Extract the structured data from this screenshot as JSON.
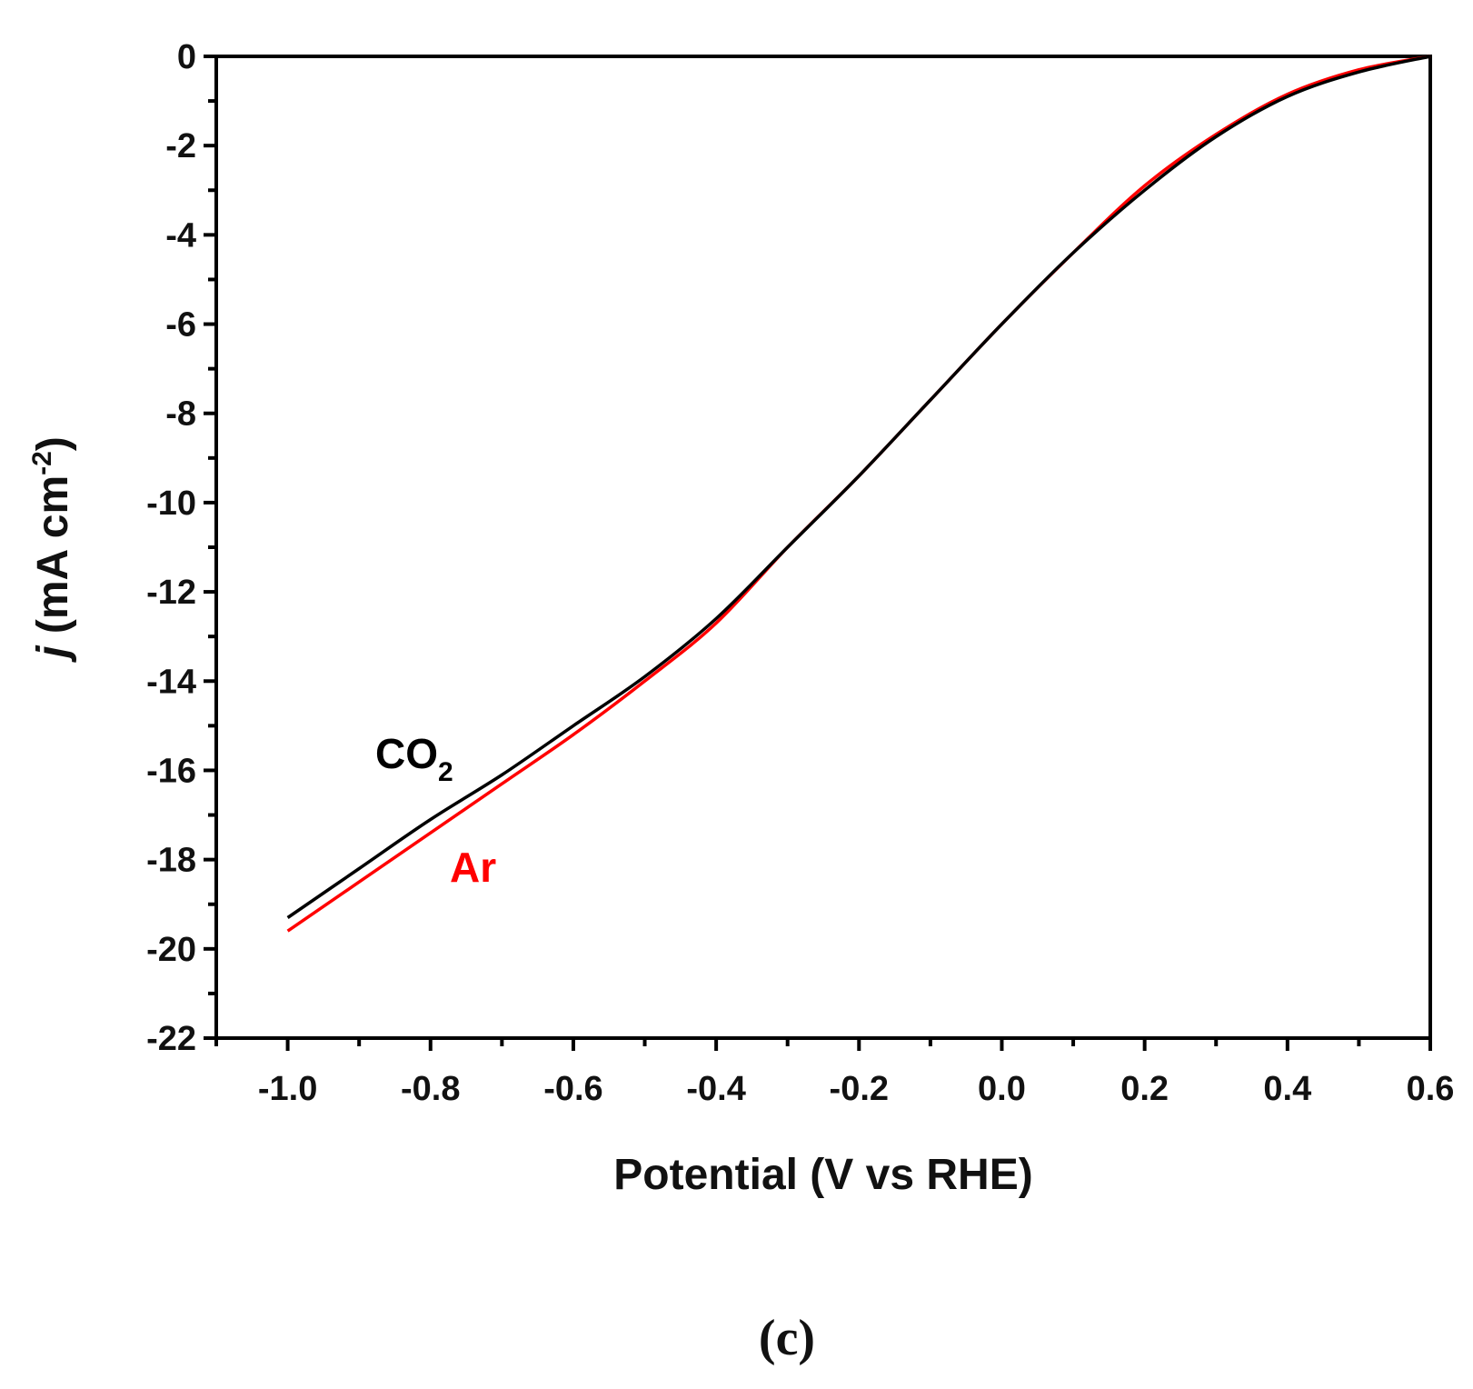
{
  "chart_data": {
    "type": "line",
    "xlabel": "Potential (V vs RHE)",
    "ylabel_italic": "j",
    "ylabel_unit": " (mA cm",
    "ylabel_sup": "-2",
    "ylabel_close": ")",
    "xlim": [
      -1.1,
      0.6
    ],
    "ylim": [
      -22,
      0
    ],
    "xticks": [
      -1.0,
      -0.8,
      -0.6,
      -0.4,
      -0.2,
      0.0,
      0.2,
      0.4,
      0.6
    ],
    "xtick_labels": [
      "-1.0",
      "-0.8",
      "-0.6",
      "-0.4",
      "-0.2",
      "0.0",
      "0.2",
      "0.4",
      "0.6"
    ],
    "yticks": [
      0,
      -2,
      -4,
      -6,
      -8,
      -10,
      -12,
      -14,
      -16,
      -18,
      -20,
      -22
    ],
    "ytick_labels": [
      "0",
      "-2",
      "-4",
      "-6",
      "-8",
      "-10",
      "-12",
      "-14",
      "-16",
      "-18",
      "-20",
      "-22"
    ],
    "grid": false,
    "series": [
      {
        "name": "CO2",
        "label_main": "CO",
        "label_sub": "2",
        "color": "#000000",
        "x": [
          -1.0,
          -0.9,
          -0.8,
          -0.7,
          -0.6,
          -0.5,
          -0.4,
          -0.3,
          -0.2,
          -0.1,
          0.0,
          0.1,
          0.2,
          0.3,
          0.4,
          0.5,
          0.6
        ],
        "y": [
          -19.3,
          -18.2,
          -17.1,
          -16.1,
          -15.0,
          -13.9,
          -12.6,
          -11.0,
          -9.4,
          -7.7,
          -6.0,
          -4.4,
          -3.0,
          -1.8,
          -0.9,
          -0.35,
          0.0
        ]
      },
      {
        "name": "Ar",
        "label_main": "Ar",
        "label_sub": "",
        "color": "#ff0000",
        "x": [
          -1.0,
          -0.9,
          -0.8,
          -0.7,
          -0.6,
          -0.5,
          -0.4,
          -0.3,
          -0.2,
          -0.1,
          0.0,
          0.1,
          0.2,
          0.3,
          0.4,
          0.5,
          0.6
        ],
        "y": [
          -19.6,
          -18.5,
          -17.4,
          -16.3,
          -15.2,
          -14.0,
          -12.7,
          -11.0,
          -9.4,
          -7.7,
          -6.0,
          -4.4,
          -2.9,
          -1.75,
          -0.85,
          -0.3,
          0.0
        ]
      }
    ]
  },
  "panel_label": "(c)"
}
